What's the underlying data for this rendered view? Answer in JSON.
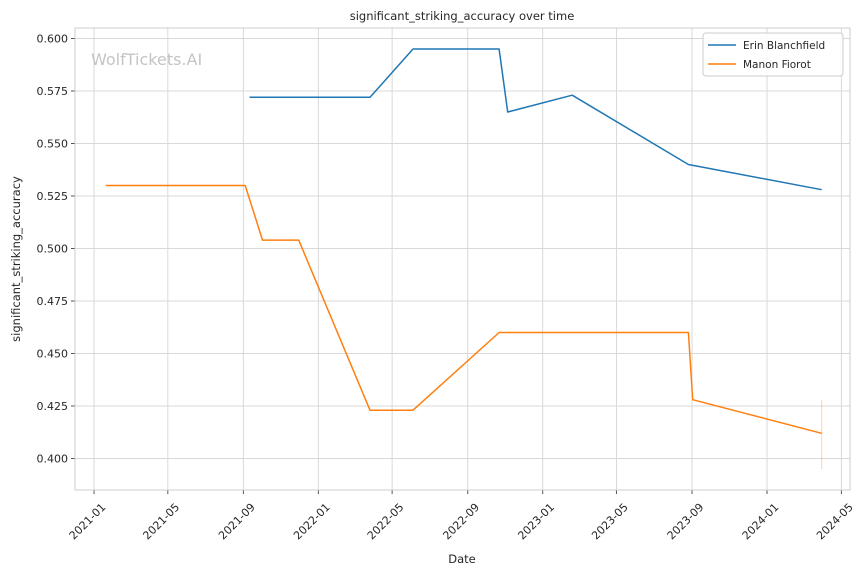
{
  "chart_data": {
    "type": "line",
    "title": "significant_striking_accuracy over time",
    "xlabel": "Date",
    "ylabel": "significant_striking_accuracy",
    "watermark": "WolfTickets.AI",
    "x_ticks": [
      "2021-01",
      "2021-05",
      "2021-09",
      "2022-01",
      "2022-05",
      "2022-09",
      "2023-01",
      "2023-05",
      "2023-09",
      "2024-01",
      "2024-05"
    ],
    "y_ticks": [
      "0.400",
      "0.425",
      "0.450",
      "0.475",
      "0.500",
      "0.525",
      "0.550",
      "0.575",
      "0.600"
    ],
    "xlim": [
      "2020-12-01",
      "2024-05-15"
    ],
    "ylim": [
      0.385,
      0.605
    ],
    "grid": true,
    "legend_position": "top-right",
    "series": [
      {
        "name": "Erin Blanchfield",
        "color": "#1f77b4",
        "points": [
          {
            "x": "2021-09-11",
            "y": 0.572
          },
          {
            "x": "2022-03-26",
            "y": 0.572
          },
          {
            "x": "2022-06-04",
            "y": 0.595
          },
          {
            "x": "2022-10-22",
            "y": 0.595
          },
          {
            "x": "2022-11-05",
            "y": 0.565
          },
          {
            "x": "2023-02-18",
            "y": 0.573
          },
          {
            "x": "2023-08-26",
            "y": 0.54
          },
          {
            "x": "2024-03-30",
            "y": 0.528
          }
        ]
      },
      {
        "name": "Manon Fiorot",
        "color": "#ff7f0e",
        "points": [
          {
            "x": "2021-01-20",
            "y": 0.53
          },
          {
            "x": "2021-09-04",
            "y": 0.53
          },
          {
            "x": "2021-10-02",
            "y": 0.504
          },
          {
            "x": "2021-11-30",
            "y": 0.504
          },
          {
            "x": "2022-03-26",
            "y": 0.423
          },
          {
            "x": "2022-06-04",
            "y": 0.423
          },
          {
            "x": "2022-10-22",
            "y": 0.46
          },
          {
            "x": "2023-08-26",
            "y": 0.46
          },
          {
            "x": "2023-09-02",
            "y": 0.428
          },
          {
            "x": "2024-03-30",
            "y": 0.412
          }
        ]
      }
    ],
    "extras": [
      {
        "type": "error_bar",
        "series": "Manon Fiorot",
        "x": "2024-03-30",
        "y_low": 0.395,
        "y_high": 0.428,
        "color": "#ff7f0e"
      }
    ]
  }
}
